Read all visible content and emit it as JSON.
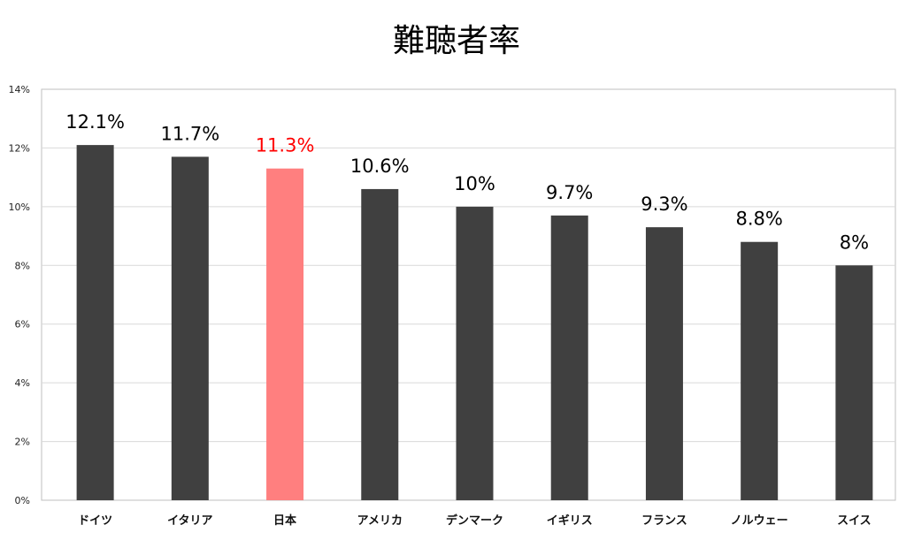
{
  "chart_data": {
    "type": "bar",
    "title": "難聴者率",
    "xlabel": "",
    "ylabel": "",
    "categories": [
      "ドイツ",
      "イタリア",
      "日本",
      "アメリカ",
      "デンマーク",
      "イギリス",
      "フランス",
      "ノルウェー",
      "スイス"
    ],
    "values": [
      12.1,
      11.7,
      11.3,
      10.6,
      10,
      9.7,
      9.3,
      8.8,
      8
    ],
    "data_labels": [
      "12.1%",
      "11.7%",
      "11.3%",
      "10.6%",
      "10%",
      "9.7%",
      "9.3%",
      "8.8%",
      "8%"
    ],
    "ylim": [
      0,
      14
    ],
    "yticks": [
      0,
      2,
      4,
      6,
      8,
      10,
      12,
      14
    ],
    "ytick_labels": [
      "0%",
      "2%",
      "4%",
      "6%",
      "8%",
      "10%",
      "12%",
      "14%"
    ],
    "grid": true,
    "legend": "none",
    "highlight_index": 2,
    "colors": {
      "bar": "#404040",
      "highlight_bar": "#ff7f7f",
      "label": "#000000",
      "highlight_label": "#ff0000",
      "grid": "#d9d9d9",
      "axis": "#bfbfbf"
    }
  }
}
